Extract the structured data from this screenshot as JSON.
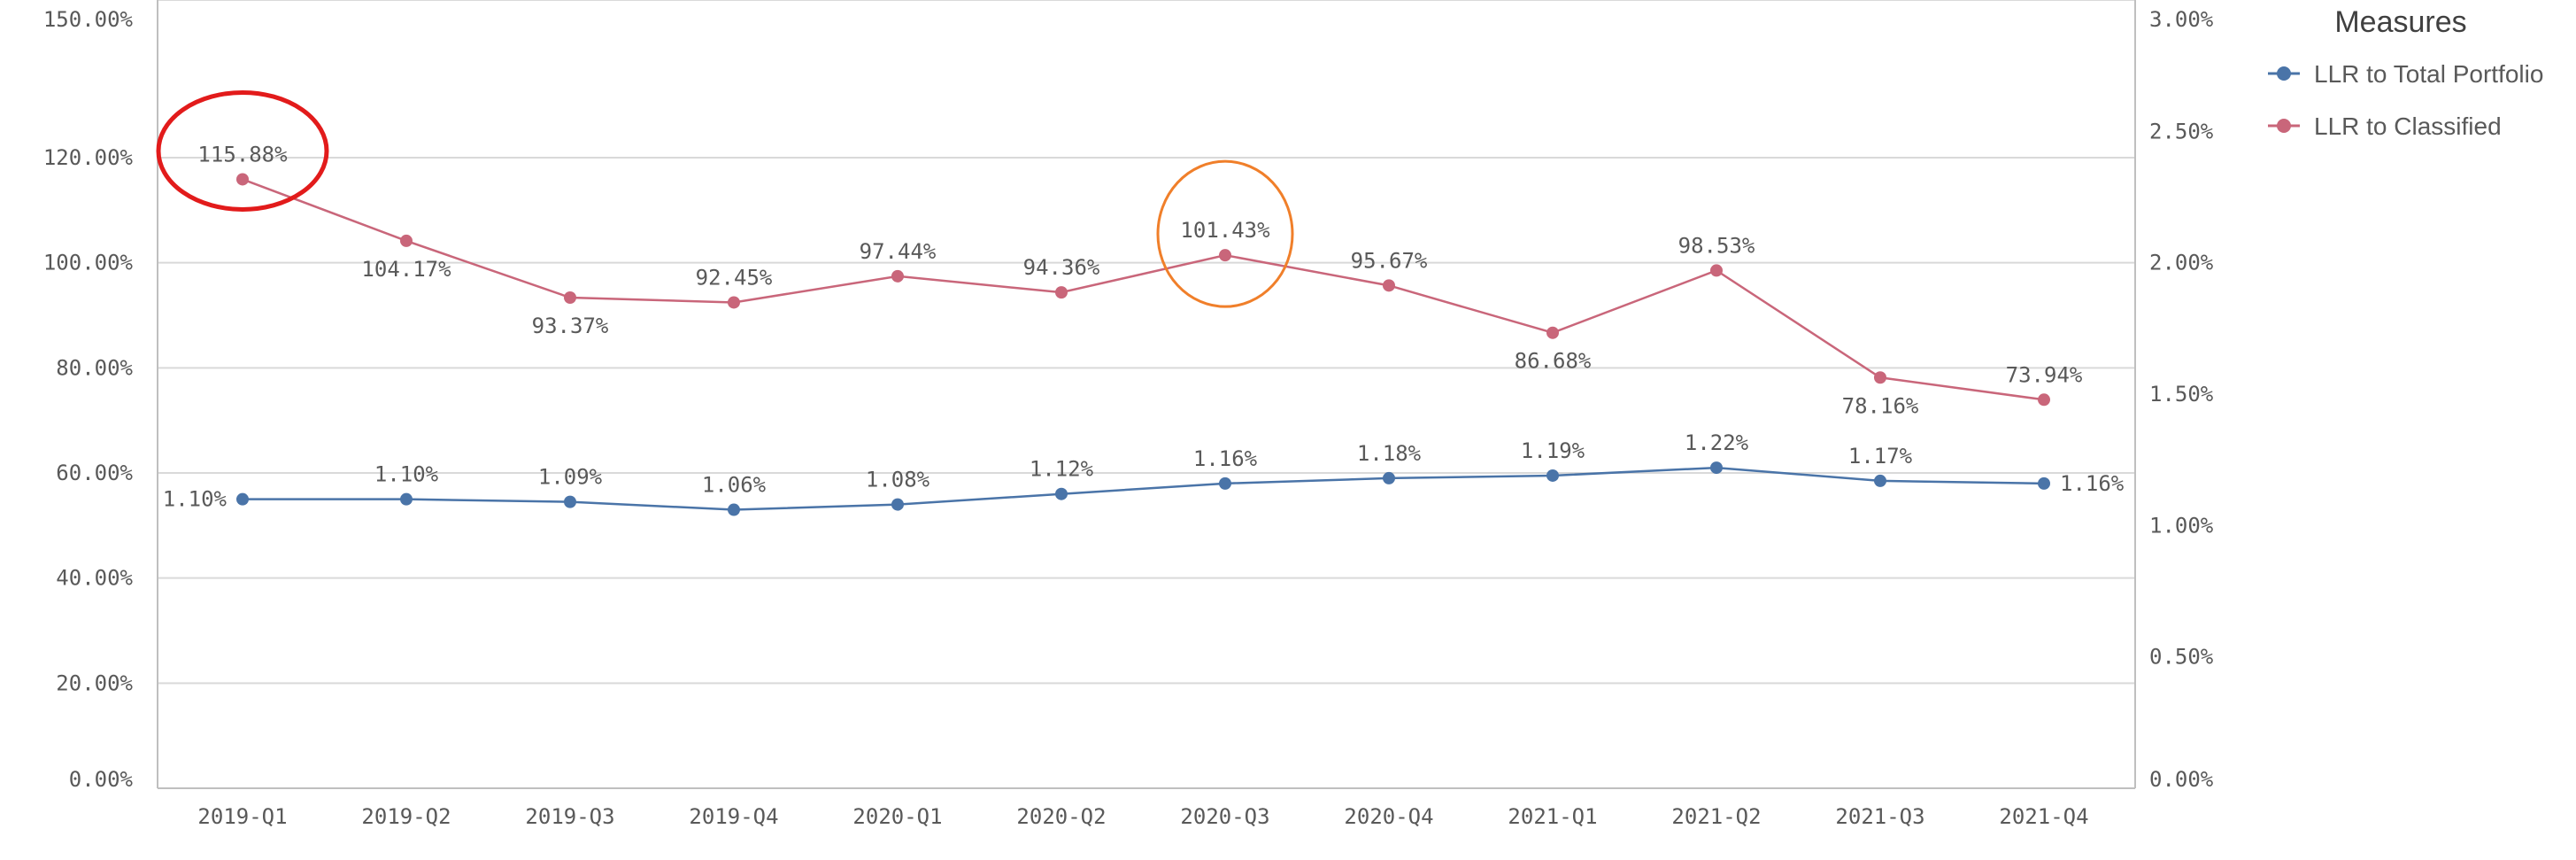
{
  "colors": {
    "series_total": "#4a74a8",
    "series_classified": "#c9667a",
    "grid": "#d9d9d9",
    "axis": "#bfbfbf",
    "annotation_red": "#e21b1b",
    "annotation_orange": "#f07f2a"
  },
  "legend": {
    "title": "Measures",
    "items": [
      "LLR to Total Portfolio",
      "LLR to Classified"
    ]
  },
  "chart_data": {
    "type": "line",
    "categories": [
      "2019-Q1",
      "2019-Q2",
      "2019-Q3",
      "2019-Q4",
      "2020-Q1",
      "2020-Q2",
      "2020-Q3",
      "2020-Q4",
      "2021-Q1",
      "2021-Q2",
      "2021-Q3",
      "2021-Q4"
    ],
    "y_left": {
      "min": 0,
      "max": 150,
      "ticks": [
        "0.00%",
        "20.00%",
        "40.00%",
        "60.00%",
        "80.00%",
        "100.00%",
        "120.00%",
        "150.00%"
      ],
      "tick_values": [
        0,
        20,
        40,
        60,
        80,
        100,
        120,
        150
      ]
    },
    "y_right": {
      "min": 0,
      "max": 3,
      "ticks": [
        "0.00%",
        "0.50%",
        "1.00%",
        "1.50%",
        "2.00%",
        "2.50%",
        "3.00%"
      ],
      "tick_values": [
        0,
        0.5,
        1,
        1.5,
        2,
        2.5,
        3
      ]
    },
    "grid": true,
    "legend_position": "top-right",
    "series": [
      {
        "name": "LLR to Total Portfolio",
        "axis": "right",
        "values": [
          1.1,
          1.1,
          1.09,
          1.06,
          1.08,
          1.12,
          1.16,
          1.18,
          1.19,
          1.22,
          1.17,
          1.16
        ],
        "labels": [
          "1.10%",
          "1.10%",
          "1.09%",
          "1.06%",
          "1.08%",
          "1.12%",
          "1.16%",
          "1.18%",
          "1.19%",
          "1.22%",
          "1.17%",
          "1.16%"
        ]
      },
      {
        "name": "LLR to Classified",
        "axis": "left",
        "values": [
          115.88,
          104.17,
          93.37,
          92.45,
          97.44,
          94.36,
          101.43,
          95.67,
          86.68,
          98.53,
          78.16,
          73.94
        ],
        "labels": [
          "115.88%",
          "104.17%",
          "93.37%",
          "92.45%",
          "97.44%",
          "94.36%",
          "101.43%",
          "95.67%",
          "86.68%",
          "98.53%",
          "78.16%",
          "73.94%"
        ]
      }
    ],
    "annotations": [
      {
        "type": "circle",
        "category": "2019-Q1",
        "series": "LLR to Classified",
        "color": "red"
      },
      {
        "type": "circle",
        "category": "2020-Q3",
        "series": "LLR to Classified",
        "color": "orange"
      }
    ]
  }
}
